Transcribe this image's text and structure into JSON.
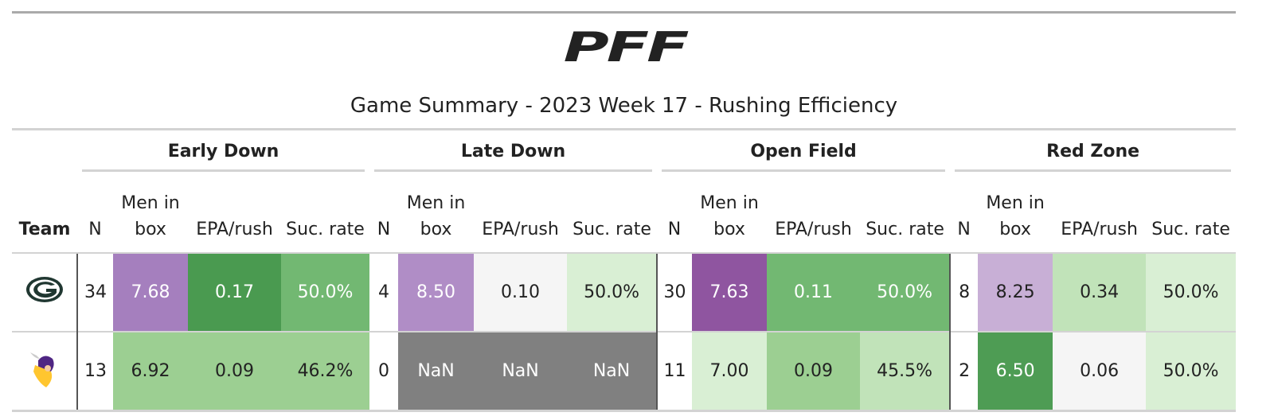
{
  "logo": "PFF",
  "title": "Game Summary - 2023 Week 17 - Rushing Efficiency",
  "table": {
    "team_header": "Team",
    "groups": [
      {
        "name": "Early Down",
        "columns": [
          "N",
          "Men in box",
          "EPA/rush",
          "Suc. rate"
        ]
      },
      {
        "name": "Late Down",
        "columns": [
          "N",
          "Men in box",
          "EPA/rush",
          "Suc. rate"
        ]
      },
      {
        "name": "Open Field",
        "columns": [
          "N",
          "Men in box",
          "EPA/rush",
          "Suc. rate"
        ]
      },
      {
        "name": "Red Zone",
        "columns": [
          "N",
          "Men in box",
          "EPA/rush",
          "Suc. rate"
        ]
      }
    ],
    "rows": [
      {
        "cells": [
          "34",
          "7.68",
          "0.17",
          "50.0%",
          "4",
          "8.50",
          "0.10",
          "50.0%",
          "30",
          "7.63",
          "0.11",
          "50.0%",
          "8",
          "8.25",
          "0.34",
          "50.0%"
        ],
        "colors": [
          "#ffffff",
          "#a57fbe",
          "#4a9a50",
          "#72b872",
          "#ffffff",
          "#b08dc6",
          "#f5f5f5",
          "#d9efd4",
          "#ffffff",
          "#8f55a0",
          "#72b872",
          "#72b872",
          "#ffffff",
          "#c8afd6",
          "#c1e3b9",
          "#d9efd4"
        ]
      },
      {
        "cells": [
          "13",
          "6.92",
          "0.09",
          "46.2%",
          "0",
          "NaN",
          "NaN",
          "NaN",
          "11",
          "7.00",
          "0.09",
          "45.5%",
          "2",
          "6.50",
          "0.06",
          "50.0%"
        ],
        "colors": [
          "#ffffff",
          "#9ccf92",
          "#9ccf92",
          "#9ccf92",
          "#ffffff",
          "#808080",
          "#808080",
          "#808080",
          "#ffffff",
          "#d9efd4",
          "#9ccf92",
          "#c1e3b9",
          "#ffffff",
          "#4e9c54",
          "#f5f5f5",
          "#d9efd4"
        ]
      }
    ]
  }
}
